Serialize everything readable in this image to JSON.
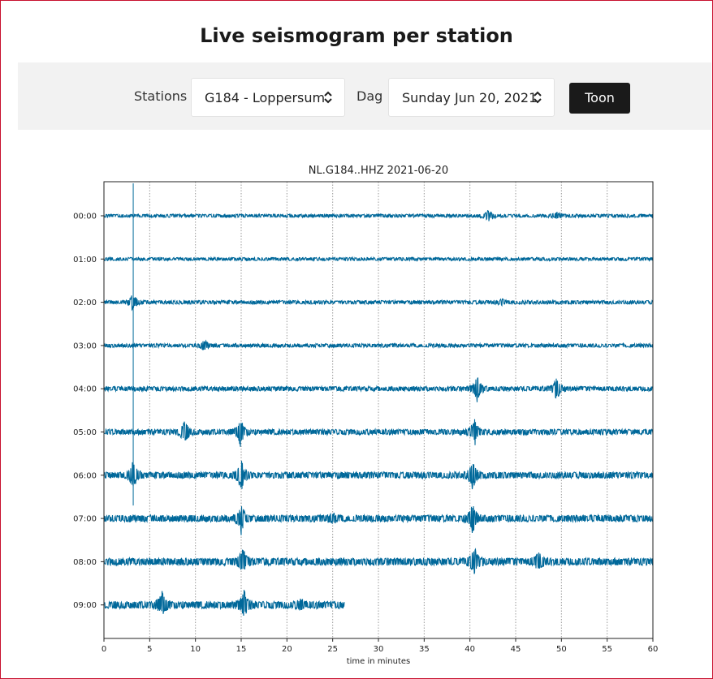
{
  "header": {
    "title": "Live seismogram per station"
  },
  "toolbar": {
    "station_label": "Stations",
    "station_value": "G184 - Loppersum",
    "day_label": "Dag",
    "day_value": "Sunday Jun 20, 2021",
    "show_button": "Toon"
  },
  "colors": {
    "trace": "#00689a",
    "button": "#1a1a1a",
    "toolbar_bg": "#f2f2f2",
    "frame": "#c8102e"
  },
  "icons": {
    "select_chevron": "chevron-up-down-icon"
  },
  "chart_data": {
    "type": "line",
    "title": "NL.G184..HHZ 2021-06-20",
    "xlabel": "time in minutes",
    "ylabel": "",
    "xlim": [
      0,
      60
    ],
    "x_ticks": [
      "0",
      "5",
      "10",
      "15",
      "20",
      "25",
      "30",
      "35",
      "40",
      "45",
      "50",
      "55",
      "60"
    ],
    "grid": "vertical dotted lines every 5 minutes",
    "series": [
      {
        "label": "00:00",
        "noise": 0.35,
        "end": 60,
        "events": [
          [
            42,
            1.2
          ],
          [
            49.5,
            0.6
          ]
        ]
      },
      {
        "label": "01:00",
        "noise": 0.35,
        "end": 60,
        "events": []
      },
      {
        "label": "02:00",
        "noise": 0.4,
        "end": 60,
        "events": [
          [
            3.2,
            2.0
          ],
          [
            43.5,
            0.5
          ]
        ]
      },
      {
        "label": "03:00",
        "noise": 0.4,
        "end": 60,
        "events": [
          [
            11,
            1.0
          ]
        ]
      },
      {
        "label": "04:00",
        "noise": 0.5,
        "end": 60,
        "events": [
          [
            40.8,
            2.8
          ],
          [
            49.5,
            2.5
          ]
        ]
      },
      {
        "label": "05:00",
        "noise": 0.6,
        "end": 60,
        "events": [
          [
            8.8,
            2.5
          ],
          [
            14.9,
            3.2
          ],
          [
            40.5,
            3.0
          ]
        ]
      },
      {
        "label": "06:00",
        "noise": 0.7,
        "end": 60,
        "events": [
          [
            3.2,
            3.0
          ],
          [
            15,
            3.2
          ],
          [
            40.3,
            3.2
          ]
        ]
      },
      {
        "label": "07:00",
        "noise": 0.75,
        "end": 60,
        "events": [
          [
            15,
            3.0
          ],
          [
            40.3,
            3.0
          ],
          [
            25,
            1.0
          ]
        ]
      },
      {
        "label": "08:00",
        "noise": 0.8,
        "end": 60,
        "events": [
          [
            15.2,
            3.0
          ],
          [
            40.5,
            2.8
          ],
          [
            47.5,
            1.8
          ]
        ]
      },
      {
        "label": "09:00",
        "noise": 0.8,
        "end": 26.3,
        "events": [
          [
            6.4,
            3.0
          ],
          [
            15.3,
            3.0
          ],
          [
            21.5,
            1.0
          ]
        ]
      }
    ]
  }
}
